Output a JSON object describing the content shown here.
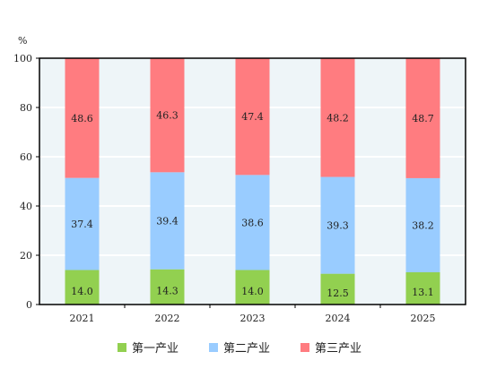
{
  "chart_data": {
    "type": "bar",
    "stacked": true,
    "unit_label": "%",
    "categories": [
      "2021",
      "2022",
      "2023",
      "2024",
      "2025"
    ],
    "series": [
      {
        "name": "第一产业",
        "color": "#92d050",
        "values": [
          14.0,
          14.3,
          14.0,
          12.5,
          13.1
        ]
      },
      {
        "name": "第二产业",
        "color": "#99ccff",
        "values": [
          37.4,
          39.4,
          38.6,
          39.3,
          38.2
        ]
      },
      {
        "name": "第三产业",
        "color": "#ff7c80",
        "values": [
          48.6,
          46.3,
          47.4,
          48.2,
          48.7
        ]
      }
    ],
    "ylim": [
      0,
      100
    ],
    "yticks": [
      0,
      20,
      40,
      60,
      80,
      100
    ],
    "grid": true,
    "plot_background": "#eef5f8",
    "legend_position": "bottom"
  }
}
